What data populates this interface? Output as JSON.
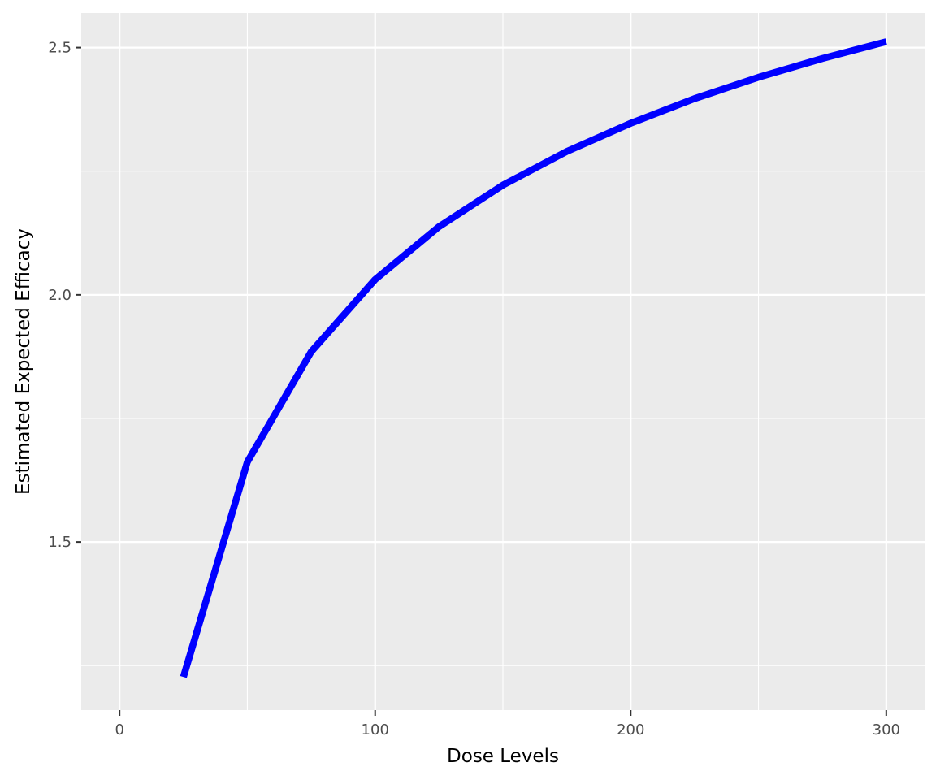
{
  "chart_data": {
    "type": "line",
    "title": "",
    "xlabel": "Dose Levels",
    "ylabel": "Estimated Expected Efficacy",
    "xlim": [
      -15,
      315
    ],
    "ylim": [
      1.16,
      2.57
    ],
    "x_ticks": [
      0,
      100,
      200,
      300
    ],
    "x_tick_labels": [
      "0",
      "100",
      "200",
      "300"
    ],
    "x_minor_ticks": [
      50,
      150,
      250
    ],
    "y_ticks": [
      1.5,
      2.0,
      2.5
    ],
    "y_tick_labels": [
      "1.5",
      "2.0",
      "2.5"
    ],
    "y_minor_ticks": [
      1.25,
      1.75,
      2.25
    ],
    "grid": true,
    "legend": "none",
    "series": [
      {
        "color": "#0000ff",
        "x": [
          25,
          50,
          75,
          100,
          125,
          150,
          175,
          200,
          225,
          250,
          275,
          300
        ],
        "y": [
          1.227,
          1.662,
          1.885,
          2.031,
          2.138,
          2.222,
          2.29,
          2.347,
          2.397,
          2.44,
          2.478,
          2.512
        ]
      }
    ],
    "colors": {
      "panel_background": "#ebebeb",
      "grid": "#ffffff",
      "tick": "#333333",
      "tick_label": "#4d4d4d"
    }
  }
}
